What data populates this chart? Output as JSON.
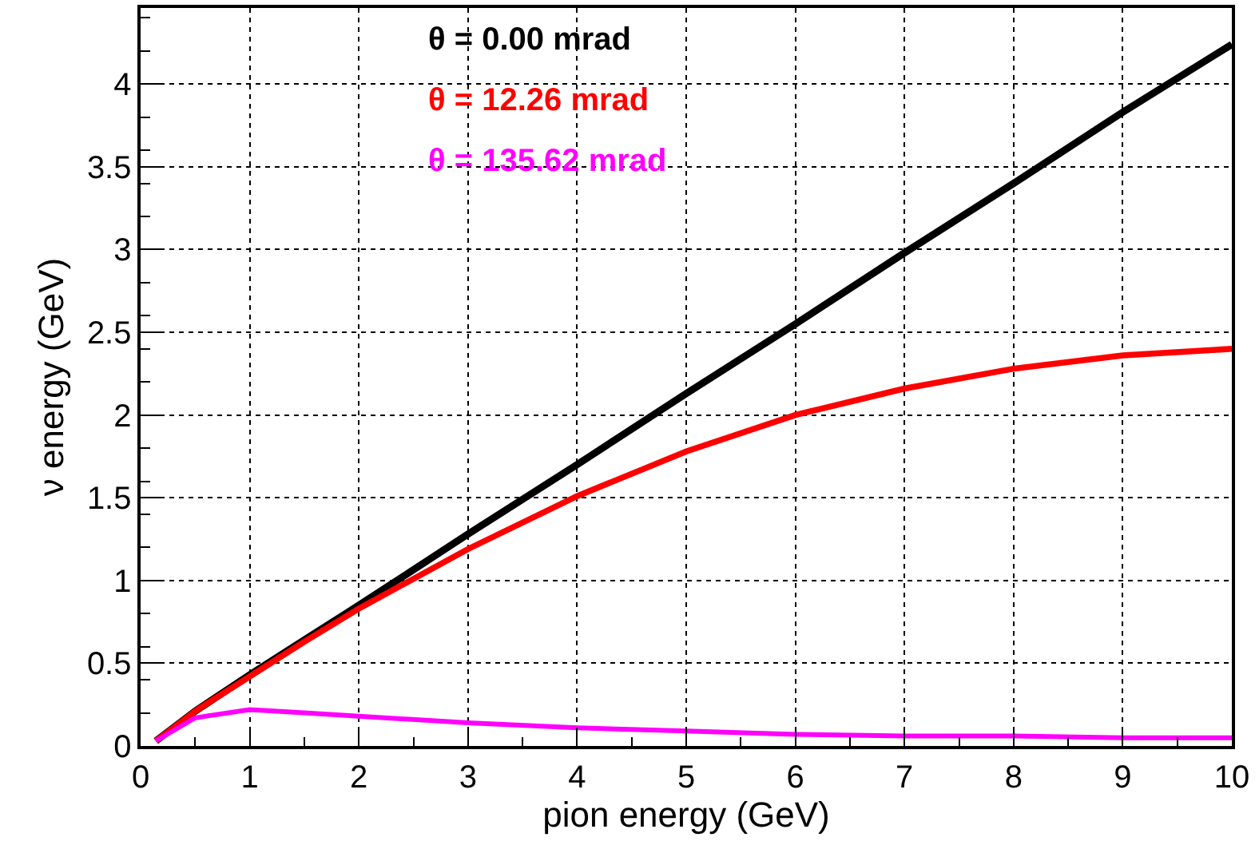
{
  "chart_data": {
    "type": "line",
    "xlabel": "pion energy (GeV)",
    "ylabel": "ν energy (GeV)",
    "x": [
      0.14,
      0.5,
      1,
      1.5,
      2,
      3,
      4,
      5,
      6,
      7,
      8,
      9,
      10
    ],
    "series": [
      {
        "name": "θ = 0.00 mrad",
        "color": "#000000",
        "values": [
          0.03,
          0.21,
          0.43,
          0.64,
          0.85,
          1.28,
          1.7,
          2.13,
          2.55,
          2.98,
          3.4,
          3.83,
          4.24
        ]
      },
      {
        "name": "θ = 12.26 mrad",
        "color": "#ff0000",
        "values": [
          0.03,
          0.21,
          0.42,
          0.63,
          0.83,
          1.19,
          1.51,
          1.78,
          2.0,
          2.16,
          2.28,
          2.36,
          2.4
        ]
      },
      {
        "name": "θ = 135.62 mrad",
        "color": "#ff00ff",
        "values": [
          0.03,
          0.17,
          0.22,
          0.2,
          0.18,
          0.14,
          0.11,
          0.09,
          0.07,
          0.06,
          0.06,
          0.05,
          0.05
        ]
      }
    ],
    "xlim": [
      0,
      10
    ],
    "xticks": [
      0,
      1,
      2,
      3,
      4,
      5,
      6,
      7,
      8,
      9,
      10
    ],
    "ylim": [
      0,
      4.46
    ],
    "yticks": [
      0,
      0.5,
      1,
      1.5,
      2,
      2.5,
      3,
      3.5,
      4
    ],
    "grid": true,
    "legend": "top",
    "marker": "none",
    "line_style": "solid"
  }
}
